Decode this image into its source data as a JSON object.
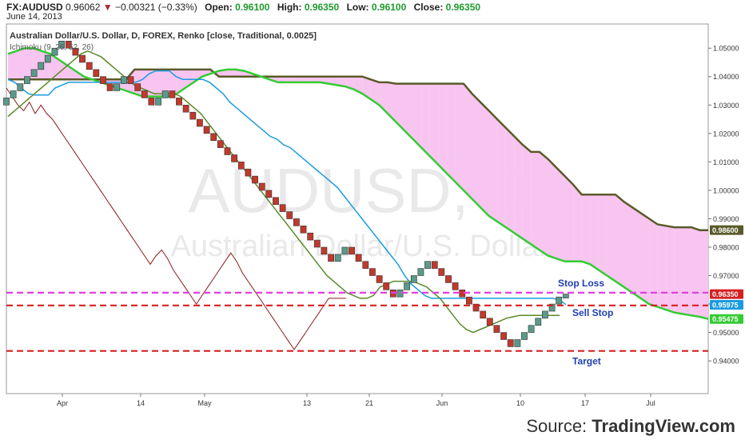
{
  "header": {
    "symbol": "FX:AUDUSD",
    "last": "0.96062",
    "change": "−0.00321 (−0.33%)",
    "open_label": "Open:",
    "open": "0.96100",
    "high_label": "High:",
    "high": "0.96350",
    "low_label": "Low:",
    "low": "0.96100",
    "close_label": "Close:",
    "close": "0.96350",
    "date": "June 14, 2013"
  },
  "source": {
    "prefix": "Source: ",
    "brand": "TradingView.com"
  },
  "colors": {
    "up_brick": "#5a9a8a",
    "down_brick": "#c0392b",
    "cloud": "#f8c4f0",
    "tenkan": "#1a9be0",
    "kijun": "#5a8a2a",
    "lagging": "#8b1a1a",
    "span_a": "#33cc33",
    "span_b": "#5a5a2a",
    "stop_loss": "#e040e0",
    "sell_stop": "#d62020",
    "target": "#d62020",
    "annotation_text": "#1f3fb0"
  },
  "chart_data": {
    "type": "renko",
    "title": "Australian Dollar/U.S. Dollar, D, FOREX, Renko [close, Traditional, 0.0025]",
    "indicator_label": "Ichimoku (9, 26, 52, 26)",
    "watermark": {
      "symbol": "AUDUSD, D",
      "name": "Australian Dollar/U.S. Dollar"
    },
    "brick_size": 0.0025,
    "y_range": [
      0.9285,
      1.0585
    ],
    "y_ticks": [
      "1.05000",
      "1.04000",
      "1.03000",
      "1.02000",
      "1.01000",
      "1.00000",
      "0.99000",
      "0.98000",
      "0.97000",
      "0.96000",
      "0.95000",
      "0.94000"
    ],
    "x_ticks": [
      "Apr",
      "14",
      "May",
      "13",
      "21",
      "Jun",
      "10",
      "17",
      "Jul"
    ],
    "price_labels": [
      {
        "value": 0.986,
        "text": "0.98600",
        "color": "#5a5a2a"
      },
      {
        "value": 0.9635,
        "text": "0.96350",
        "color": "#d62020"
      },
      {
        "value": 0.95975,
        "text": "0.95975",
        "color": "#1a9be0"
      },
      {
        "value": 0.95475,
        "text": "0.95475",
        "color": "#33cc33"
      }
    ],
    "bricks": [
      {
        "dir": "up",
        "close": 1.0325
      },
      {
        "dir": "up",
        "close": 1.035
      },
      {
        "dir": "up",
        "close": 1.0375
      },
      {
        "dir": "up",
        "close": 1.04
      },
      {
        "dir": "up",
        "close": 1.0425
      },
      {
        "dir": "up",
        "close": 1.045
      },
      {
        "dir": "up",
        "close": 1.0475
      },
      {
        "dir": "up",
        "close": 1.05
      },
      {
        "dir": "up",
        "close": 1.0525
      },
      {
        "dir": "down",
        "close": 1.05
      },
      {
        "dir": "down",
        "close": 1.0475
      },
      {
        "dir": "down",
        "close": 1.045
      },
      {
        "dir": "down",
        "close": 1.0425
      },
      {
        "dir": "down",
        "close": 1.04
      },
      {
        "dir": "down",
        "close": 1.0375
      },
      {
        "dir": "down",
        "close": 1.035
      },
      {
        "dir": "up",
        "close": 1.0375
      },
      {
        "dir": "up",
        "close": 1.04
      },
      {
        "dir": "down",
        "close": 1.0375
      },
      {
        "dir": "down",
        "close": 1.035
      },
      {
        "dir": "down",
        "close": 1.0325
      },
      {
        "dir": "down",
        "close": 1.03
      },
      {
        "dir": "up",
        "close": 1.0325
      },
      {
        "dir": "up",
        "close": 1.035
      },
      {
        "dir": "down",
        "close": 1.0325
      },
      {
        "dir": "down",
        "close": 1.03
      },
      {
        "dir": "down",
        "close": 1.0275
      },
      {
        "dir": "down",
        "close": 1.025
      },
      {
        "dir": "down",
        "close": 1.0225
      },
      {
        "dir": "down",
        "close": 1.02
      },
      {
        "dir": "down",
        "close": 1.0175
      },
      {
        "dir": "down",
        "close": 1.015
      },
      {
        "dir": "down",
        "close": 1.0125
      },
      {
        "dir": "down",
        "close": 1.01
      },
      {
        "dir": "down",
        "close": 1.0075
      },
      {
        "dir": "down",
        "close": 1.005
      },
      {
        "dir": "down",
        "close": 1.0025
      },
      {
        "dir": "down",
        "close": 1.0
      },
      {
        "dir": "down",
        "close": 0.9975
      },
      {
        "dir": "down",
        "close": 0.995
      },
      {
        "dir": "down",
        "close": 0.9925
      },
      {
        "dir": "down",
        "close": 0.99
      },
      {
        "dir": "down",
        "close": 0.9875
      },
      {
        "dir": "down",
        "close": 0.985
      },
      {
        "dir": "down",
        "close": 0.9825
      },
      {
        "dir": "down",
        "close": 0.98
      },
      {
        "dir": "down",
        "close": 0.9775
      },
      {
        "dir": "down",
        "close": 0.975
      },
      {
        "dir": "up",
        "close": 0.9775
      },
      {
        "dir": "up",
        "close": 0.98
      },
      {
        "dir": "down",
        "close": 0.9775
      },
      {
        "dir": "down",
        "close": 0.975
      },
      {
        "dir": "down",
        "close": 0.9725
      },
      {
        "dir": "down",
        "close": 0.97
      },
      {
        "dir": "down",
        "close": 0.9675
      },
      {
        "dir": "down",
        "close": 0.965
      },
      {
        "dir": "down",
        "close": 0.9625
      },
      {
        "dir": "up",
        "close": 0.965
      },
      {
        "dir": "up",
        "close": 0.9675
      },
      {
        "dir": "up",
        "close": 0.97
      },
      {
        "dir": "up",
        "close": 0.9725
      },
      {
        "dir": "up",
        "close": 0.975
      },
      {
        "dir": "down",
        "close": 0.9725
      },
      {
        "dir": "down",
        "close": 0.97
      },
      {
        "dir": "down",
        "close": 0.9675
      },
      {
        "dir": "down",
        "close": 0.965
      },
      {
        "dir": "down",
        "close": 0.9625
      },
      {
        "dir": "down",
        "close": 0.96
      },
      {
        "dir": "down",
        "close": 0.9575
      },
      {
        "dir": "down",
        "close": 0.955
      },
      {
        "dir": "down",
        "close": 0.9525
      },
      {
        "dir": "down",
        "close": 0.95
      },
      {
        "dir": "down",
        "close": 0.9475
      },
      {
        "dir": "down",
        "close": 0.945
      },
      {
        "dir": "up",
        "close": 0.9475
      },
      {
        "dir": "up",
        "close": 0.95
      },
      {
        "dir": "up",
        "close": 0.9525
      },
      {
        "dir": "up",
        "close": 0.955
      },
      {
        "dir": "up",
        "close": 0.9575
      },
      {
        "dir": "up",
        "close": 0.96
      },
      {
        "dir": "up",
        "close": 0.9625
      },
      {
        "dir": "up",
        "close": 0.9635
      }
    ],
    "ichimoku": {
      "tenkan": [
        1.039,
        1.038,
        1.036,
        1.034,
        1.0335,
        1.0335,
        1.0335,
        1.036,
        1.037,
        1.038,
        1.038,
        1.038,
        1.038,
        1.038,
        1.038,
        1.038,
        1.038,
        1.038,
        1.038,
        1.038,
        1.039,
        1.041,
        1.042,
        1.042,
        1.042,
        1.04,
        1.039,
        1.039,
        1.039,
        1.039,
        1.038,
        1.036,
        1.034,
        1.031,
        1.029,
        1.027,
        1.025,
        1.023,
        1.021,
        1.019,
        1.018,
        1.016,
        1.015,
        1.013,
        1.011,
        1.009,
        1.007,
        1.005,
        1.003,
        1.001,
        0.998,
        0.995,
        0.992,
        0.989,
        0.986,
        0.983,
        0.98,
        0.977,
        0.974,
        0.97,
        0.967,
        0.965,
        0.963,
        0.962,
        0.962,
        0.962,
        0.962,
        0.962,
        0.962,
        0.962,
        0.962,
        0.962,
        0.962,
        0.962,
        0.962,
        0.962,
        0.962,
        0.962,
        0.962,
        0.962,
        0.962,
        0.962,
        0.9615,
        0.9598
      ],
      "kijun": [
        1.026,
        1.028,
        1.03,
        1.032,
        1.034,
        1.036,
        1.038,
        1.04,
        1.042,
        1.044,
        1.046,
        1.048,
        1.049,
        1.048,
        1.047,
        1.045,
        1.043,
        1.041,
        1.039,
        1.037,
        1.036,
        1.035,
        1.034,
        1.034,
        1.034,
        1.034,
        1.033,
        1.031,
        1.029,
        1.027,
        1.024,
        1.021,
        1.018,
        1.015,
        1.012,
        1.009,
        1.006,
        1.003,
        1.0,
        0.997,
        0.994,
        0.991,
        0.988,
        0.985,
        0.982,
        0.979,
        0.976,
        0.973,
        0.97,
        0.968,
        0.966,
        0.964,
        0.963,
        0.962,
        0.962,
        0.963,
        0.966,
        0.967,
        0.968,
        0.968,
        0.968,
        0.968,
        0.967,
        0.966,
        0.964,
        0.962,
        0.959,
        0.956,
        0.953,
        0.951,
        0.95,
        0.951,
        0.952,
        0.953,
        0.954,
        0.955,
        0.9555,
        0.956,
        0.956,
        0.956,
        0.956,
        0.956,
        0.956,
        0.956
      ],
      "lagging": [
        1.036,
        1.033,
        1.03,
        1.028,
        1.031,
        1.027,
        1.03,
        1.027,
        1.025,
        1.022,
        1.019,
        1.016,
        1.013,
        1.01,
        1.007,
        1.004,
        1.001,
        0.998,
        0.995,
        0.992,
        0.989,
        0.986,
        0.983,
        0.98,
        0.977,
        0.974,
        0.977,
        0.979,
        0.976,
        0.972,
        0.969,
        0.966,
        0.963,
        0.96,
        0.963,
        0.966,
        0.969,
        0.972,
        0.975,
        0.978,
        0.975,
        0.971,
        0.968,
        0.965,
        0.962,
        0.959,
        0.956,
        0.953,
        0.95,
        0.947,
        0.944,
        0.947,
        0.95,
        0.953,
        0.956,
        0.959,
        0.962,
        0.962,
        0.962,
        0.962
      ],
      "span_a": [
        1.048,
        1.049,
        1.05,
        1.05,
        1.049,
        1.048,
        1.046,
        1.044,
        1.042,
        1.04,
        1.039,
        1.038,
        1.037,
        1.036,
        1.035,
        1.034,
        1.033,
        1.033,
        1.033,
        1.033,
        1.034,
        1.036,
        1.038,
        1.04,
        1.041,
        1.042,
        1.0425,
        1.0425,
        1.042,
        1.041,
        1.04,
        1.039,
        1.038,
        1.038,
        1.038,
        1.038,
        1.038,
        1.038,
        1.0375,
        1.037,
        1.0365,
        1.0355,
        1.034,
        1.032,
        1.03,
        1.027,
        1.024,
        1.021,
        1.018,
        1.015,
        1.012,
        1.009,
        1.006,
        1.003,
        1.0,
        0.997,
        0.994,
        0.991,
        0.989,
        0.987,
        0.985,
        0.983,
        0.981,
        0.979,
        0.977,
        0.976,
        0.975,
        0.975,
        0.975,
        0.974,
        0.972,
        0.97,
        0.968,
        0.966,
        0.964,
        0.962,
        0.96,
        0.959,
        0.958,
        0.957,
        0.9565,
        0.956,
        0.9555,
        0.95475
      ],
      "span_b": [
        1.039,
        1.039,
        1.039,
        1.039,
        1.039,
        1.039,
        1.039,
        1.039,
        1.039,
        1.039,
        1.039,
        1.039,
        1.039,
        1.039,
        1.039,
        1.0425,
        1.0425,
        1.0425,
        1.0425,
        1.0425,
        1.0425,
        1.0425,
        1.0425,
        1.0425,
        1.0425,
        1.04,
        1.04,
        1.04,
        1.04,
        1.04,
        1.04,
        1.04,
        1.04,
        1.04,
        1.04,
        1.04,
        1.04,
        1.04,
        1.04,
        1.04,
        1.04,
        1.04,
        1.04,
        1.039,
        1.038,
        1.038,
        1.0375,
        1.0375,
        1.0375,
        1.0375,
        1.0375,
        1.0375,
        1.0375,
        1.0375,
        1.0375,
        1.034,
        1.031,
        1.028,
        1.025,
        1.022,
        1.019,
        1.016,
        1.0135,
        1.0135,
        1.011,
        1.008,
        1.005,
        1.002,
        0.9985,
        0.9985,
        0.9985,
        0.9985,
        0.9985,
        0.996,
        0.994,
        0.992,
        0.99,
        0.988,
        0.9875,
        0.987,
        0.987,
        0.987,
        0.986,
        0.986
      ]
    },
    "levels": [
      {
        "name": "Stop Loss",
        "value": 0.964,
        "color": "#e040e0"
      },
      {
        "name": "Sell Stop",
        "value": 0.9595,
        "color": "#d62020"
      },
      {
        "name": "Target",
        "value": 0.9435,
        "color": "#d62020"
      }
    ]
  }
}
